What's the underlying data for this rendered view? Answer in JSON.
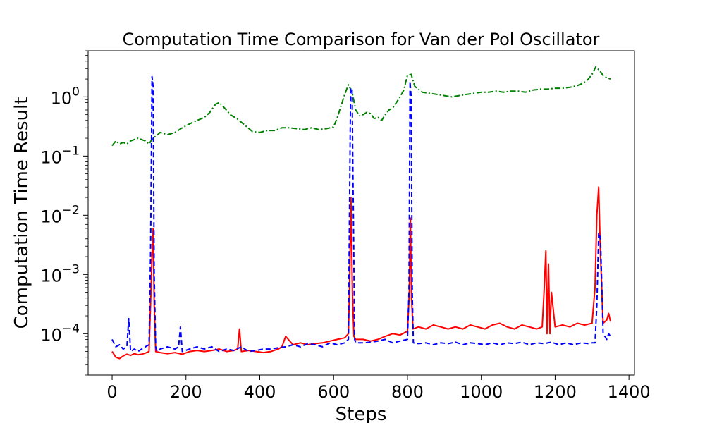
{
  "chart_data": {
    "type": "line",
    "title": "Computation Time Comparison for Van der Pol Oscillator",
    "xlabel": "Steps",
    "ylabel": "Computation Time Result",
    "xlim": [
      -65,
      1415
    ],
    "ylim": [
      2e-05,
      6.0
    ],
    "yscale": "log",
    "grid": false,
    "legend": "none",
    "x_ticks": [
      0,
      200,
      400,
      600,
      800,
      1000,
      1200,
      1400
    ],
    "x_tick_labels": [
      "0",
      "200",
      "400",
      "600",
      "800",
      "1000",
      "1200",
      "1400"
    ],
    "y_ticks": [
      {
        "value": 0.0001,
        "base": "10",
        "exp": "−4"
      },
      {
        "value": 0.001,
        "base": "10",
        "exp": "−3"
      },
      {
        "value": 0.01,
        "base": "10",
        "exp": "−2"
      },
      {
        "value": 0.1,
        "base": "10",
        "exp": "−1"
      },
      {
        "value": 1,
        "base": "10",
        "exp": "0"
      }
    ],
    "series": [
      {
        "color": "#008000",
        "dash": "dashdot",
        "x": [
          0,
          10,
          20,
          30,
          40,
          50,
          60,
          70,
          80,
          90,
          100,
          110,
          120,
          130,
          150,
          170,
          190,
          210,
          230,
          250,
          265,
          280,
          290,
          300,
          320,
          340,
          360,
          380,
          400,
          420,
          440,
          460,
          480,
          500,
          520,
          540,
          560,
          580,
          600,
          610,
          620,
          630,
          640,
          650,
          660,
          670,
          680,
          690,
          700,
          710,
          720,
          730,
          740,
          750,
          760,
          770,
          780,
          790,
          800,
          810,
          820,
          840,
          860,
          880,
          900,
          920,
          940,
          960,
          980,
          1000,
          1020,
          1040,
          1060,
          1080,
          1100,
          1120,
          1140,
          1160,
          1180,
          1200,
          1220,
          1240,
          1260,
          1280,
          1290,
          1300,
          1310,
          1320,
          1330,
          1340,
          1350
        ],
        "y": [
          0.15,
          0.18,
          0.16,
          0.17,
          0.16,
          0.18,
          0.19,
          0.2,
          0.19,
          0.18,
          0.16,
          0.2,
          0.22,
          0.25,
          0.23,
          0.25,
          0.3,
          0.35,
          0.4,
          0.45,
          0.55,
          0.75,
          0.8,
          0.7,
          0.5,
          0.42,
          0.33,
          0.26,
          0.25,
          0.27,
          0.27,
          0.3,
          0.3,
          0.29,
          0.28,
          0.3,
          0.28,
          0.29,
          0.31,
          0.45,
          0.7,
          1.1,
          1.6,
          1.2,
          0.6,
          0.48,
          0.5,
          0.55,
          0.52,
          0.43,
          0.45,
          0.4,
          0.5,
          0.6,
          0.65,
          0.8,
          1.0,
          1.3,
          2.3,
          2.4,
          1.5,
          1.2,
          1.15,
          1.1,
          1.05,
          1.0,
          1.05,
          1.1,
          1.15,
          1.2,
          1.2,
          1.25,
          1.2,
          1.25,
          1.25,
          1.2,
          1.3,
          1.35,
          1.35,
          1.4,
          1.4,
          1.45,
          1.55,
          1.75,
          2.0,
          2.4,
          3.2,
          2.8,
          2.3,
          2.1,
          2.0
        ]
      },
      {
        "color": "#ff0000",
        "dash": "solid",
        "x": [
          0,
          10,
          20,
          30,
          40,
          50,
          60,
          70,
          80,
          90,
          100,
          104,
          108,
          111,
          114,
          118,
          130,
          150,
          170,
          190,
          210,
          230,
          250,
          270,
          290,
          310,
          330,
          340,
          345,
          350,
          370,
          390,
          410,
          430,
          450,
          460,
          470,
          490,
          510,
          530,
          550,
          570,
          590,
          610,
          630,
          640,
          643,
          647,
          651,
          655,
          660,
          680,
          700,
          720,
          740,
          760,
          780,
          800,
          805,
          808,
          811,
          815,
          830,
          850,
          870,
          890,
          910,
          930,
          950,
          970,
          990,
          1010,
          1030,
          1050,
          1070,
          1090,
          1110,
          1130,
          1150,
          1165,
          1170,
          1175,
          1178,
          1182,
          1186,
          1190,
          1200,
          1220,
          1240,
          1260,
          1280,
          1300,
          1308,
          1313,
          1318,
          1323,
          1330,
          1340,
          1345,
          1350
        ],
        "y": [
          5e-05,
          4e-05,
          3.8e-05,
          4.2e-05,
          4.5e-05,
          4.3e-05,
          4.6e-05,
          4.4e-05,
          4.5e-05,
          4.7e-05,
          5e-05,
          0.0003,
          0.002,
          0.006,
          0.0003,
          5e-05,
          4.8e-05,
          4.6e-05,
          4.8e-05,
          4.5e-05,
          5e-05,
          5.2e-05,
          5e-05,
          5.2e-05,
          5.5e-05,
          5e-05,
          5.2e-05,
          5.5e-05,
          0.00012,
          5e-05,
          5.2e-05,
          5e-05,
          4.8e-05,
          5e-05,
          5.5e-05,
          6e-05,
          9e-05,
          6.5e-05,
          7e-05,
          6.5e-05,
          6.8e-05,
          7e-05,
          7.5e-05,
          8e-05,
          8.5e-05,
          0.0001,
          0.0005,
          0.02,
          0.0005,
          9e-05,
          8e-05,
          8e-05,
          7.5e-05,
          8e-05,
          9e-05,
          0.0001,
          9.5e-05,
          0.00011,
          0.0005,
          0.009,
          0.0004,
          0.00012,
          0.00013,
          0.00012,
          0.00014,
          0.00013,
          0.00012,
          0.00013,
          0.00012,
          0.00014,
          0.00013,
          0.00012,
          0.00014,
          0.00015,
          0.00013,
          0.00012,
          0.00014,
          0.00013,
          0.00012,
          0.00013,
          0.0005,
          0.0025,
          0.0001,
          0.0015,
          0.0001,
          0.0005,
          0.00013,
          0.00014,
          0.00013,
          0.00015,
          0.00014,
          0.00015,
          0.0006,
          0.01,
          0.03,
          0.002,
          0.00015,
          0.00017,
          0.00022,
          0.00016
        ]
      },
      {
        "color": "#0000ff",
        "dash": "dashed",
        "x": [
          0,
          10,
          20,
          30,
          40,
          45,
          50,
          60,
          70,
          80,
          90,
          100,
          104,
          108,
          111,
          114,
          118,
          122,
          130,
          150,
          170,
          180,
          185,
          190,
          210,
          230,
          250,
          270,
          290,
          310,
          330,
          350,
          370,
          390,
          410,
          430,
          450,
          470,
          490,
          510,
          530,
          550,
          570,
          590,
          610,
          630,
          640,
          643,
          646,
          650,
          654,
          657,
          660,
          680,
          700,
          720,
          740,
          760,
          780,
          800,
          804,
          807,
          810,
          813,
          816,
          830,
          850,
          870,
          890,
          910,
          930,
          950,
          970,
          990,
          1010,
          1030,
          1050,
          1070,
          1090,
          1110,
          1130,
          1150,
          1170,
          1190,
          1210,
          1230,
          1250,
          1270,
          1290,
          1300,
          1308,
          1313,
          1318,
          1323,
          1330,
          1340,
          1345,
          1350
        ],
        "y": [
          8e-05,
          6e-05,
          6.5e-05,
          5.5e-05,
          6e-05,
          0.00018,
          5e-05,
          5.5e-05,
          5e-05,
          5.5e-05,
          6e-05,
          6.5e-05,
          0.002,
          2.2,
          1.5,
          0.001,
          6e-05,
          5e-05,
          5.5e-05,
          6e-05,
          5.5e-05,
          6e-05,
          0.00013,
          5e-05,
          5.5e-05,
          6e-05,
          5.5e-05,
          6e-05,
          5e-05,
          5.5e-05,
          5.2e-05,
          6e-05,
          5e-05,
          5.2e-05,
          5.5e-05,
          5.5e-05,
          5.8e-05,
          6e-05,
          6.5e-05,
          6e-05,
          6.8e-05,
          6.5e-05,
          6e-05,
          7e-05,
          6.5e-05,
          7e-05,
          8e-05,
          0.01,
          1.4,
          1.4,
          0.005,
          8e-05,
          7e-05,
          7e-05,
          7.2e-05,
          7.5e-05,
          8e-05,
          7e-05,
          7.5e-05,
          8e-05,
          0.0005,
          1.8,
          1.0,
          0.0005,
          7e-05,
          6.8e-05,
          7e-05,
          6.5e-05,
          7e-05,
          6.8e-05,
          7.2e-05,
          6.5e-05,
          7e-05,
          6.8e-05,
          6.5e-05,
          7e-05,
          6.5e-05,
          7e-05,
          6.8e-05,
          7.2e-05,
          6.5e-05,
          7e-05,
          6.8e-05,
          7.2e-05,
          6.5e-05,
          7e-05,
          6.5e-05,
          7e-05,
          6.8e-05,
          7e-05,
          7e-05,
          0.0003,
          0.005,
          0.004,
          0.0001,
          8e-05,
          0.0001,
          9e-05
        ]
      }
    ]
  }
}
